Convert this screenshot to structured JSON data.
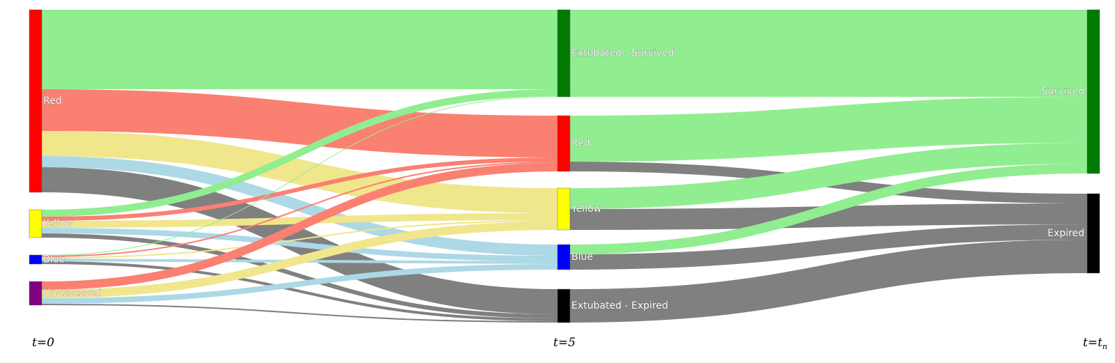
{
  "stages": [
    {
      "id": "t0",
      "label": "t=0"
    },
    {
      "id": "t5",
      "label": "t=5"
    },
    {
      "id": "tn",
      "label": "t=t",
      "sub": "n"
    }
  ],
  "nodes": [
    {
      "id": "r0",
      "label": "Red",
      "color": "#ff0000"
    },
    {
      "id": "y0",
      "label": "Yellow",
      "color": "#ffff00"
    },
    {
      "id": "b0",
      "label": "Blue",
      "color": "#0000ff"
    },
    {
      "id": "u0",
      "label": "Unassessed",
      "color": "#800080"
    },
    {
      "id": "es5",
      "label": "Extubated - Survived",
      "color": "#007a00"
    },
    {
      "id": "r5",
      "label": "Red",
      "color": "#ff0000"
    },
    {
      "id": "y5",
      "label": "Yellow",
      "color": "#ffff00"
    },
    {
      "id": "b5",
      "label": "Blue",
      "color": "#0000ff"
    },
    {
      "id": "ee5",
      "label": "Extubated - Expired",
      "color": "#000000"
    },
    {
      "id": "sv",
      "label": "Survived",
      "color": "#007a00"
    },
    {
      "id": "ex",
      "label": "Expired",
      "color": "#000000"
    }
  ],
  "link_colors": {
    "extubated_survived": "#90ee90",
    "red": "#fa8072",
    "yellow": "#f0e68c",
    "blue": "#add8e6",
    "extubated_expired": "#808080",
    "survived": "#90ee90",
    "expired": "#808080"
  },
  "chart_data": {
    "type": "sankey",
    "links": [
      {
        "source": "r0",
        "target": "es5",
        "value": 114,
        "color_key": "extubated_survived"
      },
      {
        "source": "r0",
        "target": "r5",
        "value": 60,
        "color_key": "red"
      },
      {
        "source": "r0",
        "target": "y5",
        "value": 36,
        "color_key": "yellow"
      },
      {
        "source": "r0",
        "target": "b5",
        "value": 16,
        "color_key": "blue"
      },
      {
        "source": "r0",
        "target": "ee5",
        "value": 36,
        "color_key": "extubated_expired"
      },
      {
        "source": "y0",
        "target": "es5",
        "value": 10,
        "color_key": "extubated_survived"
      },
      {
        "source": "y0",
        "target": "r5",
        "value": 6,
        "color_key": "red"
      },
      {
        "source": "y0",
        "target": "y5",
        "value": 10,
        "color_key": "yellow"
      },
      {
        "source": "y0",
        "target": "b5",
        "value": 8,
        "color_key": "blue"
      },
      {
        "source": "y0",
        "target": "ee5",
        "value": 6,
        "color_key": "extubated_expired"
      },
      {
        "source": "b0",
        "target": "es5",
        "value": 1,
        "color_key": "extubated_survived"
      },
      {
        "source": "b0",
        "target": "r5",
        "value": 2,
        "color_key": "red"
      },
      {
        "source": "b0",
        "target": "y5",
        "value": 2,
        "color_key": "yellow"
      },
      {
        "source": "b0",
        "target": "b5",
        "value": 4,
        "color_key": "blue"
      },
      {
        "source": "b0",
        "target": "ee5",
        "value": 4,
        "color_key": "extubated_expired"
      },
      {
        "source": "u0",
        "target": "r5",
        "value": 12,
        "color_key": "red"
      },
      {
        "source": "u0",
        "target": "y5",
        "value": 12,
        "color_key": "yellow"
      },
      {
        "source": "u0",
        "target": "b5",
        "value": 8,
        "color_key": "blue"
      },
      {
        "source": "u0",
        "target": "ee5",
        "value": 2,
        "color_key": "extubated_expired"
      },
      {
        "source": "es5",
        "target": "sv",
        "value": 125,
        "color_key": "survived"
      },
      {
        "source": "r5",
        "target": "sv",
        "value": 66,
        "color_key": "survived"
      },
      {
        "source": "r5",
        "target": "ex",
        "value": 14,
        "color_key": "expired"
      },
      {
        "source": "y5",
        "target": "sv",
        "value": 30,
        "color_key": "survived"
      },
      {
        "source": "y5",
        "target": "ex",
        "value": 30,
        "color_key": "expired"
      },
      {
        "source": "b5",
        "target": "sv",
        "value": 14,
        "color_key": "survived"
      },
      {
        "source": "b5",
        "target": "ex",
        "value": 22,
        "color_key": "expired"
      },
      {
        "source": "ee5",
        "target": "ex",
        "value": 48,
        "color_key": "expired"
      }
    ]
  }
}
